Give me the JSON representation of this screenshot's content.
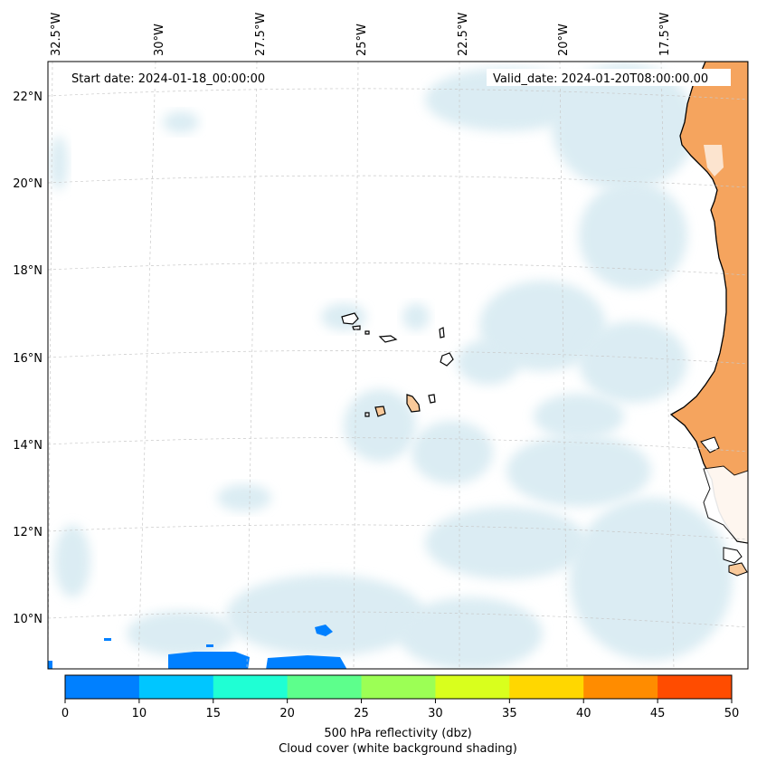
{
  "map": {
    "start_date_label": "Start date: 2024-01-18_00:00:00",
    "valid_date_label": "Valid_date: 2024-01-20T08:00:00.00",
    "lon_labels": [
      "32.5°W",
      "30°W",
      "27.5°W",
      "25°W",
      "22.5°W",
      "20°W",
      "17.5°W"
    ],
    "lat_labels": [
      "22°N",
      "20°N",
      "18°N",
      "16°N",
      "14°N",
      "12°N",
      "10°N"
    ],
    "colors": {
      "land_sahara": "#f5a45e",
      "land_island": "#f9c99a",
      "cloud_shading": "#cfe6ef",
      "coastline": "#000000",
      "gridline": "#c8c8c8"
    }
  },
  "colorbar": {
    "ticks": [
      "0",
      "10",
      "15",
      "20",
      "25",
      "30",
      "35",
      "40",
      "45",
      "50"
    ],
    "colors": [
      "#0080ff",
      "#00c6ff",
      "#1fffd4",
      "#5dff8c",
      "#9cff55",
      "#d9ff1d",
      "#ffd700",
      "#ff8c00",
      "#ff4c00"
    ],
    "label_line1": "500 hPa reflectivity (dbz)",
    "label_line2": "Cloud cover (white background shading)"
  }
}
